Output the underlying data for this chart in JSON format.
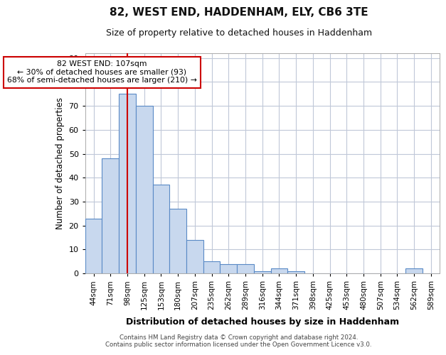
{
  "title": "82, WEST END, HADDENHAM, ELY, CB6 3TE",
  "subtitle": "Size of property relative to detached houses in Haddenham",
  "xlabel": "Distribution of detached houses by size in Haddenham",
  "ylabel": "Number of detached properties",
  "bar_labels": [
    "44sqm",
    "71sqm",
    "98sqm",
    "125sqm",
    "153sqm",
    "180sqm",
    "207sqm",
    "235sqm",
    "262sqm",
    "289sqm",
    "316sqm",
    "344sqm",
    "371sqm",
    "398sqm",
    "425sqm",
    "453sqm",
    "480sqm",
    "507sqm",
    "534sqm",
    "562sqm",
    "589sqm"
  ],
  "bar_values": [
    23,
    48,
    75,
    70,
    37,
    27,
    14,
    5,
    4,
    4,
    1,
    2,
    1,
    0,
    0,
    0,
    0,
    0,
    0,
    2,
    0
  ],
  "bar_color": "#c8d8ee",
  "bar_edge_color": "#5a8ac6",
  "vline_x": 2.5,
  "vline_color": "#cc0000",
  "ylim": [
    0,
    92
  ],
  "yticks": [
    0,
    10,
    20,
    30,
    40,
    50,
    60,
    70,
    80,
    90
  ],
  "annotation_text": "82 WEST END: 107sqm\n← 30% of detached houses are smaller (93)\n68% of semi-detached houses are larger (210) →",
  "annotation_box_color": "#cc0000",
  "footer_text": "Contains HM Land Registry data © Crown copyright and database right 2024.\nContains public sector information licensed under the Open Government Licence v3.0.",
  "background_color": "#ffffff",
  "grid_color": "#c0c8d8"
}
